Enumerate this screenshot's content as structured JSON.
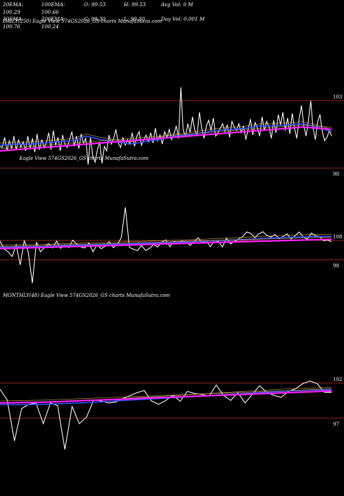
{
  "header": {
    "ema20": "20EMA: 100.29",
    "ema100": "100EMA: 100.66",
    "open": "O: 99.53",
    "high": "H: 99.53",
    "avgvol": "Avg Vol: 0  M",
    "ema30": "30EMA: 100.76",
    "ema200": "200EMA: 100.24",
    "close": "C: 99.30",
    "low": "L: 99.30",
    "dayvol": "Day Vol: 0.001 M"
  },
  "daily_caption": "DAILY(250) Eagle  View  574GS2026_GS charts MunafaSutra.com",
  "daily_watermark": "Eagle  View  574GS2026_GS charts MunafaSutra.com",
  "monthly_caption": "MONTHLY(48) Eagle  View  574GS2026_GS charts MunafaSutra.com",
  "colors": {
    "price": "#ffffff",
    "ema_fast": "#3355ff",
    "ema_slow": "#ff22ff",
    "ema_mid": "#e0b060",
    "hline": "#8b2a1a"
  },
  "chart_data": [
    {
      "type": "line",
      "name": "daily",
      "ylim": [
        97,
        105
      ],
      "yticks": [
        "103",
        "98"
      ],
      "series": [
        {
          "name": "price",
          "values": [
            100.0,
            99.9,
            100.8,
            99.6,
            100.5,
            99.8,
            100.9,
            99.7,
            100.6,
            99.9,
            100.4,
            99.6,
            100.9,
            99.8,
            100.7,
            99.5,
            101.1,
            99.7,
            100.6,
            99.9,
            100.3,
            101.2,
            99.7,
            101.4,
            100.1,
            100.8,
            99.6,
            101.0,
            100.2,
            99.9,
            100.6,
            101.3,
            100.0,
            100.9,
            99.8,
            101.1,
            100.3,
            100.7,
            98.4,
            100.8,
            99.2,
            98.6,
            99.7,
            100.4,
            98.5,
            100.0,
            99.6,
            101.0,
            100.2,
            100.7,
            101.5,
            100.3,
            99.9,
            100.8,
            100.1,
            100.6,
            100.2,
            101.2,
            100.0,
            100.9,
            101.3,
            100.1,
            100.6,
            101.0,
            100.4,
            101.2,
            100.3,
            101.6,
            100.5,
            101.0,
            100.2,
            101.3,
            100.8,
            101.5,
            100.6,
            101.1,
            101.8,
            100.7,
            105.2,
            101.4,
            100.9,
            102.0,
            101.2,
            102.6,
            101.4,
            101.0,
            103.0,
            101.6,
            100.7,
            101.8,
            102.3,
            101.4,
            102.5,
            100.9,
            101.2,
            101.6,
            102.0,
            101.3,
            101.9,
            100.8,
            102.2,
            101.7,
            101.4,
            102.0,
            101.2,
            101.8,
            100.6,
            101.5,
            102.4,
            101.0,
            102.1,
            101.6,
            100.9,
            102.6,
            101.4,
            102.2,
            101.7,
            100.7,
            102.3,
            101.2,
            102.8,
            101.9,
            103.0,
            101.4,
            102.5,
            101.1,
            102.9,
            101.6,
            100.7,
            102.4,
            103.6,
            101.8,
            100.9,
            102.3,
            104.0,
            101.6,
            100.6,
            102.2,
            102.8,
            101.3,
            100.5,
            100.8,
            101.4,
            100.9
          ]
        },
        {
          "name": "ema_fast",
          "values": [
            100.1,
            100.2,
            100.2,
            100.3,
            100.4,
            100.5,
            100.9,
            100.6,
            100.4,
            100.2,
            100.4,
            100.6,
            100.9,
            101.0,
            101.2,
            101.4,
            101.5,
            101.6,
            101.8,
            101.8,
            101.9,
            102.0,
            101.7,
            101.3
          ]
        },
        {
          "name": "ema_slow",
          "values": [
            99.6,
            99.7,
            99.8,
            99.9,
            100.0,
            100.1,
            100.2,
            100.3,
            100.4,
            100.5,
            100.6,
            100.7,
            100.8,
            100.9,
            101.0,
            101.1,
            101.2,
            101.3,
            101.4,
            101.5,
            101.6,
            101.7,
            101.6,
            101.5
          ]
        }
      ]
    },
    {
      "type": "line",
      "name": "intermediate",
      "ylim": [
        90,
        112
      ],
      "yticks": [
        "108",
        "98"
      ],
      "series": [
        {
          "name": "price",
          "values": [
            101.0,
            98.5,
            97.6,
            96.1,
            99.8,
            93.4,
            101.2,
            97.5,
            87.6,
            100.7,
            97.6,
            98.9,
            100.2,
            98.8,
            101.0,
            98.7,
            99.8,
            98.9,
            101.3,
            100.0,
            99.1,
            98.8,
            100.4,
            97.6,
            99.8,
            98.6,
            99.3,
            100.9,
            98.9,
            99.9,
            102.1,
            111.8,
            99.0,
            98.4,
            98.0,
            99.6,
            98.0,
            98.7,
            99.9,
            99.1,
            100.7,
            101.4,
            99.2,
            100.9,
            100.7,
            101.0,
            100.8,
            99.6,
            100.9,
            102.1,
            100.5,
            101.1,
            99.2,
            101.1,
            100.9,
            99.1,
            101.9,
            100.1,
            100.9,
            101.7,
            102.4,
            103.9,
            103.5,
            102.1,
            103.3,
            104.0,
            102.8,
            102.3,
            103.1,
            101.8,
            102.5,
            103.3,
            101.7,
            102.8,
            103.9,
            102.3,
            101.6,
            103.6,
            102.7,
            102.5,
            101.1,
            101.3,
            100.8
          ]
        },
        {
          "name": "ema_fast",
          "values": [
            99.0,
            99.2,
            99.3,
            99.6,
            99.8,
            100.0,
            100.2,
            100.4,
            100.6,
            100.9,
            101.2,
            101.5,
            101.9,
            102.2,
            102.4,
            102.5
          ]
        },
        {
          "name": "ema_slow",
          "values": [
            98.6,
            98.8,
            99.0,
            99.2,
            99.4,
            99.6,
            99.8,
            100.0,
            100.2,
            100.4,
            100.6,
            100.8,
            101.0,
            101.2,
            101.4,
            101.6
          ]
        }
      ]
    },
    {
      "type": "line",
      "name": "monthly",
      "ylim": [
        84,
        104
      ],
      "yticks": [
        "102",
        "97"
      ],
      "series": [
        {
          "name": "price",
          "values": [
            100.0,
            97.5,
            88.0,
            95.5,
            96.5,
            96.8,
            92.0,
            96.8,
            96.2,
            86.0,
            96.0,
            92.0,
            93.5,
            97.5,
            97.3,
            96.8,
            97.0,
            97.8,
            98.5,
            99.2,
            99.7,
            97.3,
            96.5,
            97.4,
            98.6,
            97.2,
            99.5,
            99.0,
            98.8,
            98.4,
            101.0,
            98.6,
            97.4,
            99.2,
            96.8,
            98.8,
            100.8,
            99.3,
            98.6,
            98.1,
            99.5,
            100.1,
            101.3,
            101.9,
            101.3,
            99.3,
            99.3
          ]
        },
        {
          "name": "ema_fast",
          "values": [
            96.4,
            96.4,
            96.5,
            96.7,
            96.9,
            97.2,
            97.5,
            97.8,
            98.1,
            98.4,
            98.7,
            99.0,
            99.3,
            99.6,
            99.8,
            99.9
          ]
        },
        {
          "name": "ema_slow",
          "values": [
            96.8,
            96.9,
            97.0,
            97.2,
            97.4,
            97.6,
            97.8,
            98.0,
            98.2,
            98.4,
            98.6,
            98.8,
            99.0,
            99.2,
            99.4,
            99.6
          ]
        }
      ]
    }
  ]
}
